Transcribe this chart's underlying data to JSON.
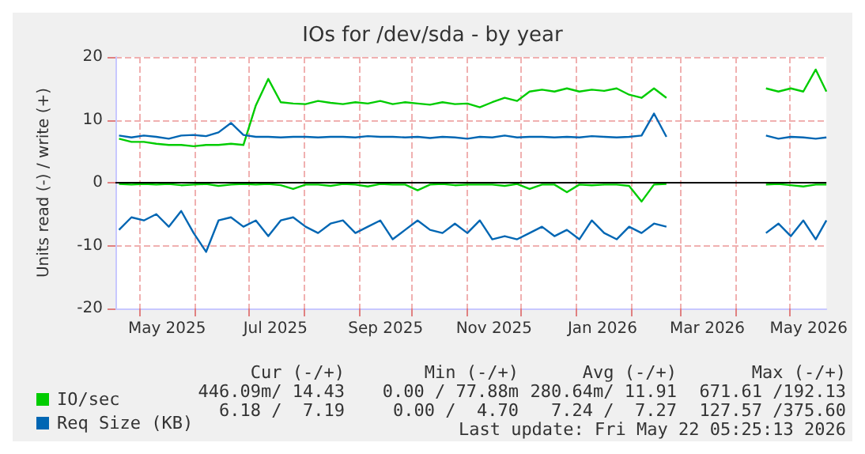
{
  "chart_data": {
    "type": "line",
    "title": "IOs for /dev/sda - by year",
    "ylabel": "Units read (-) / write (+)",
    "x": [
      "2025-04-19",
      "2025-04-26",
      "2025-05-03",
      "2025-05-10",
      "2025-05-17",
      "2025-05-24",
      "2025-05-31",
      "2025-06-07",
      "2025-06-14",
      "2025-06-21",
      "2025-06-28",
      "2025-07-05",
      "2025-07-12",
      "2025-07-19",
      "2025-07-26",
      "2025-08-02",
      "2025-08-09",
      "2025-08-16",
      "2025-08-23",
      "2025-08-30",
      "2025-09-06",
      "2025-09-13",
      "2025-09-20",
      "2025-09-27",
      "2025-10-04",
      "2025-10-11",
      "2025-10-18",
      "2025-10-25",
      "2025-11-01",
      "2025-11-08",
      "2025-11-15",
      "2025-11-22",
      "2025-11-29",
      "2025-12-06",
      "2025-12-13",
      "2025-12-20",
      "2025-12-27",
      "2026-01-03",
      "2026-01-10",
      "2026-01-17",
      "2026-01-24",
      "2026-01-31",
      "2026-02-07",
      "2026-02-14",
      "2026-02-21",
      "2026-03-15",
      "2026-04-18",
      "2026-04-25",
      "2026-05-02",
      "2026-05-09",
      "2026-05-16",
      "2026-05-22"
    ],
    "series": [
      {
        "name": "IO/sec",
        "color": "#00cc00",
        "values": [
          7,
          6.5,
          6.5,
          6.2,
          6.0,
          6.0,
          5.8,
          6.0,
          6.0,
          6.2,
          6.0,
          12.3,
          16.5,
          12.8,
          12.6,
          12.5,
          13,
          12.7,
          12.5,
          12.8,
          12.6,
          13,
          12.5,
          12.8,
          12.6,
          12.4,
          12.8,
          12.5,
          12.6,
          12,
          12.8,
          13.5,
          13,
          14.5,
          14.8,
          14.5,
          15,
          14.5,
          14.8,
          14.6,
          15,
          14,
          13.5,
          15,
          13.5,
          null,
          15,
          14.5,
          15,
          14.5,
          18,
          14.5
        ]
      },
      {
        "color": "#00cc00",
        "values": [
          -0.2,
          -0.3,
          -0.2,
          -0.3,
          -0.2,
          -0.4,
          -0.3,
          -0.2,
          -0.5,
          -0.3,
          -0.2,
          -0.3,
          -0.2,
          -0.4,
          -1,
          -0.3,
          -0.3,
          -0.5,
          -0.2,
          -0.3,
          -0.6,
          -0.2,
          -0.3,
          -0.3,
          -1.2,
          -0.3,
          -0.2,
          -0.4,
          -0.3,
          -0.3,
          -0.3,
          -0.5,
          -0.2,
          -1,
          -0.3,
          -0.3,
          -1.5,
          -0.3,
          -0.4,
          -0.3,
          -0.3,
          -0.5,
          -3,
          -0.3,
          -0.2,
          null,
          -0.3,
          -0.2,
          -0.4,
          -0.6,
          -0.3,
          -0.3
        ]
      },
      {
        "name": "Req Size (KB)",
        "color": "#0066b3",
        "values": [
          7.5,
          7.2,
          7.5,
          7.3,
          7.0,
          7.5,
          7.6,
          7.4,
          8.0,
          9.5,
          7.6,
          7.3,
          7.3,
          7.2,
          7.3,
          7.3,
          7.2,
          7.3,
          7.3,
          7.2,
          7.4,
          7.3,
          7.3,
          7.2,
          7.3,
          7.1,
          7.3,
          7.2,
          7.0,
          7.3,
          7.2,
          7.5,
          7.2,
          7.3,
          7.3,
          7.2,
          7.3,
          7.2,
          7.4,
          7.3,
          7.2,
          7.3,
          7.5,
          11,
          7.3,
          null,
          7.5,
          7.0,
          7.3,
          7.2,
          7.0,
          7.2
        ]
      },
      {
        "color": "#0066b3",
        "values": [
          -7.5,
          -5.5,
          -6,
          -5,
          -7,
          -4.5,
          -8,
          -11,
          -6,
          -5.5,
          -7,
          -6,
          -8.5,
          -6,
          -5.5,
          -7,
          -8,
          -6.5,
          -6,
          -8,
          -7,
          -6,
          -9,
          -7.5,
          -6,
          -7.5,
          -8,
          -6.5,
          -8,
          -6,
          -9,
          -8.5,
          -9,
          -8,
          -7,
          -8.5,
          -7.5,
          -9,
          -6,
          -8,
          -9,
          -7,
          -8,
          -6.5,
          -7,
          null,
          -8,
          -6.5,
          -8.5,
          -6,
          -9,
          -6
        ]
      }
    ],
    "xlim": [
      "2025-04-17",
      "2026-05-22"
    ],
    "xticks": [
      {
        "value": "2025-05-16",
        "label": "May 2025"
      },
      {
        "value": "2025-07-16",
        "label": "Jul 2025"
      },
      {
        "value": "2025-09-16",
        "label": "Sep 2025"
      },
      {
        "value": "2025-11-16",
        "label": "Nov 2025"
      },
      {
        "value": "2026-01-16",
        "label": "Jan 2026"
      },
      {
        "value": "2026-03-16",
        "label": "Mar 2026"
      },
      {
        "value": "2026-05-12",
        "label": "May 2026"
      },
      {
        "value": "2025-05-01",
        "label": null
      },
      {
        "value": "2025-06-01",
        "label": null
      },
      {
        "value": "2025-07-01",
        "label": null
      },
      {
        "value": "2025-08-01",
        "label": null
      },
      {
        "value": "2025-09-01",
        "label": null
      },
      {
        "value": "2025-10-01",
        "label": null
      },
      {
        "value": "2025-11-01",
        "label": null
      },
      {
        "value": "2025-12-01",
        "label": null
      },
      {
        "value": "2026-01-01",
        "label": null
      },
      {
        "value": "2026-02-01",
        "label": null
      },
      {
        "value": "2026-03-01",
        "label": null
      },
      {
        "value": "2026-04-01",
        "label": null
      },
      {
        "value": "2026-05-01",
        "label": null
      }
    ],
    "ylim": [
      -20,
      20
    ],
    "yticks": [
      -20,
      -10,
      0,
      10,
      20
    ],
    "ref_lines": [
      {
        "axis": "y",
        "value": 0,
        "color": "#000000"
      }
    ],
    "grid": true,
    "legend": "bottom",
    "line_style": "solid",
    "marker": "none",
    "annotations": [
      "Cur (-/+)",
      "Min (-/+)",
      "Avg (-/+)",
      "Max (-/+)",
      "446.09m/ 14.43",
      "0.00 / 77.88m",
      "280.64m/ 11.91",
      "671.61 /192.13",
      "6.18 /  7.19",
      "0.00 /  4.70",
      "7.24 /  7.27",
      "127.57 /375.60",
      "Last update: Fri May 22 05:25:13 2026"
    ]
  }
}
